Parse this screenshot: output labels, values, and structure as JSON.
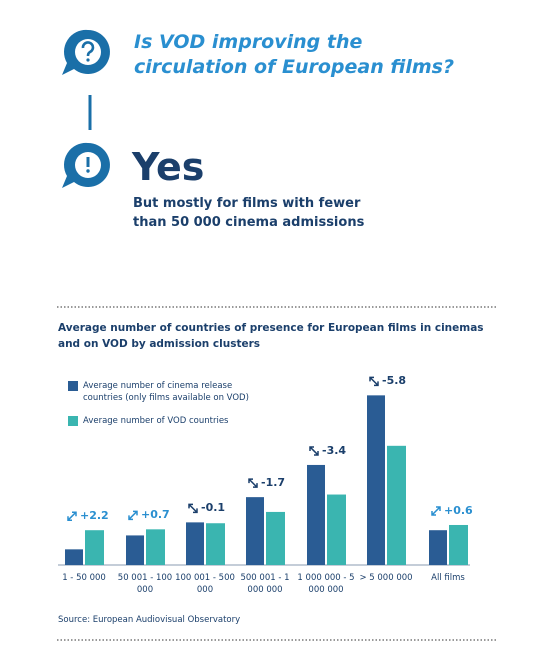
{
  "header": {
    "question": "Is VOD improving the circulation of European films?",
    "answer": "Yes",
    "answer_detail": "But mostly for films with fewer than 50 000 cinema admissions"
  },
  "chart_data": {
    "type": "bar",
    "title": "Average number of countries of presence for European films in cinemas and on VOD by admission clusters",
    "categories": [
      "1 - 50 000",
      "50 001 - 100 000",
      "100 001 - 500 000",
      "500 001 - 1 000 000",
      "1 000 000 - 5 000 000",
      "> 5 000 000",
      "All films"
    ],
    "series": [
      {
        "name": "Average number of cinema release countries (only films available on VOD)",
        "color": "#2a5c94",
        "values": [
          1.8,
          3.4,
          4.9,
          7.8,
          11.5,
          19.5,
          4.0
        ]
      },
      {
        "name": "Average number of VOD countries",
        "color": "#3ab5b0",
        "values": [
          4.0,
          4.1,
          4.8,
          6.1,
          8.1,
          13.7,
          4.6
        ]
      }
    ],
    "differences": {
      "values": [
        2.2,
        0.7,
        -0.1,
        -1.7,
        -3.4,
        -5.8,
        0.6
      ],
      "value_labels": [
        "+2.2",
        "+0.7",
        "-0.1",
        "-1.7",
        "-3.4",
        "-5.8",
        "+0.6"
      ]
    },
    "source": "Source: European Audiovisual Observatory"
  }
}
